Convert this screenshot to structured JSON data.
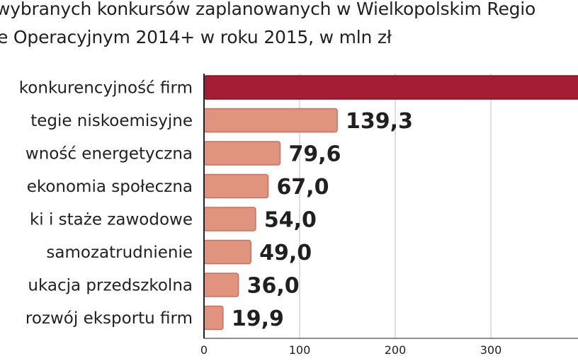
{
  "title_line1": "wybranych konkursów zaplanowanych w Wielkopolskim Regio",
  "title_line2": "e Operacyjnym 2014+ w roku 2015, w mln zł",
  "colors": {
    "highlight": "#a51d33",
    "bar": "#e0947e",
    "bar_stroke": "#ffffff",
    "axis": "#231f20",
    "grid": "#bcbec0"
  },
  "chart_data": {
    "type": "bar",
    "orientation": "horizontal",
    "categories": [
      "konkurencyjność firm",
      "tegie niskoemisyjne",
      "wność energetyczna",
      "ekonomia społeczna",
      "ki i staże zawodowe",
      "samozatrudnienie",
      "ukacja przedszkolna",
      "rozwój eksportu firm"
    ],
    "values": [
      400,
      139.3,
      79.6,
      67.0,
      54.0,
      49.0,
      36.0,
      19.9
    ],
    "value_labels": [
      "",
      "139,3",
      "79,6",
      "67,0",
      "54,0",
      "49,0",
      "36,0",
      "19,9"
    ],
    "highlight_index": 0,
    "x_ticks": [
      0,
      100,
      200,
      300
    ],
    "x_tick_labels": [
      "0",
      "100",
      "200",
      "300"
    ],
    "xlim": [
      0,
      390
    ],
    "grid": true
  }
}
